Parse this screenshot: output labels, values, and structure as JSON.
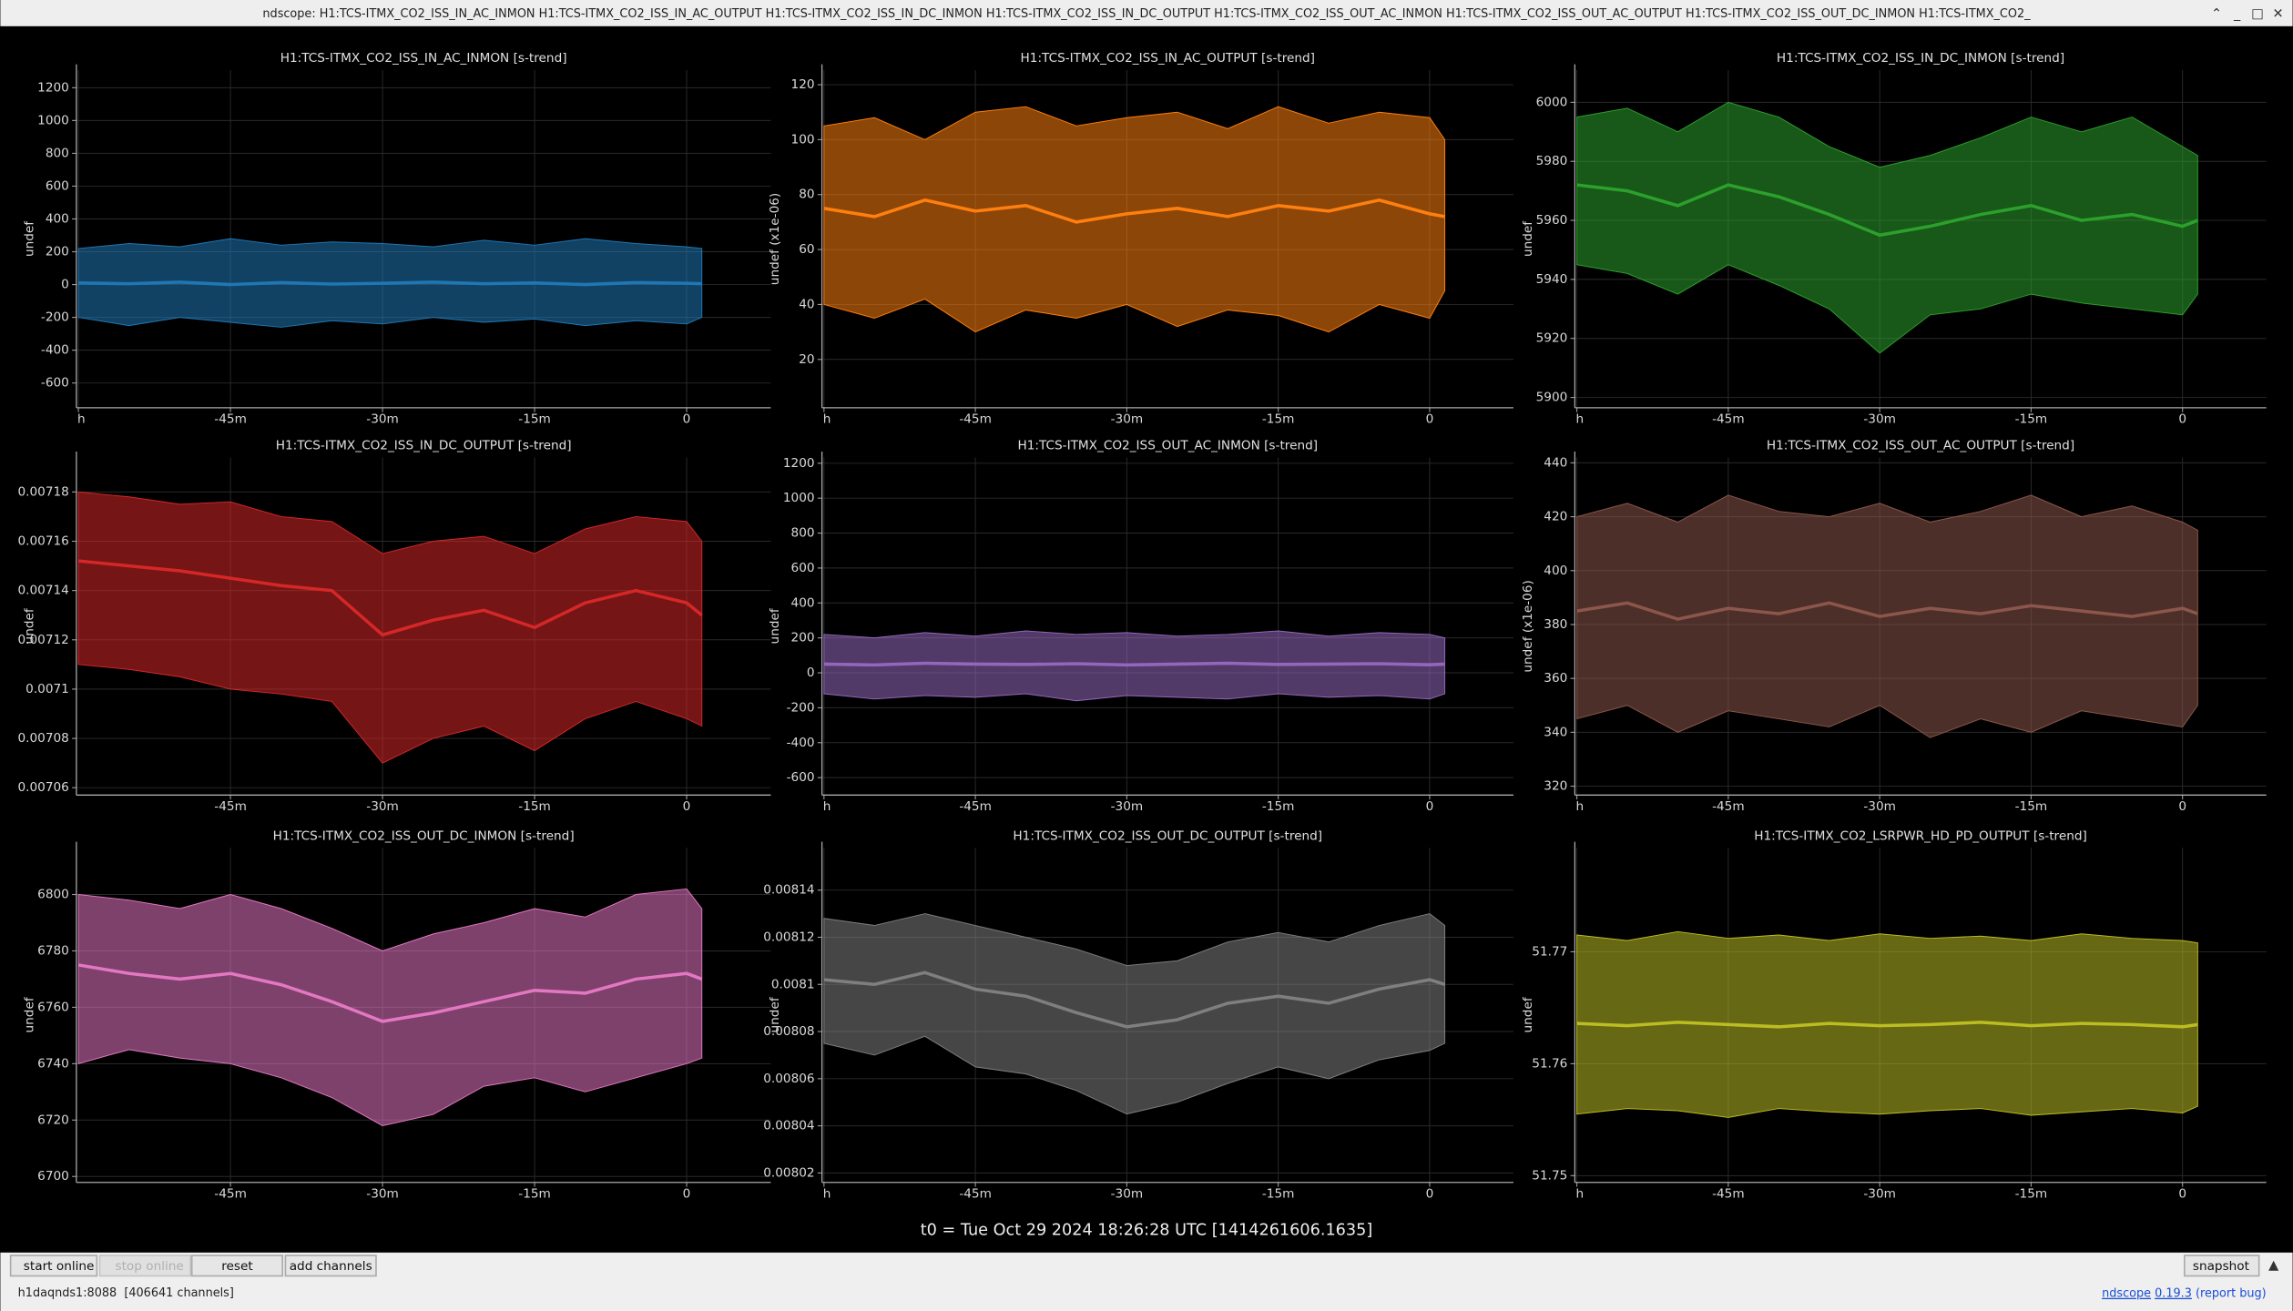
{
  "window_title": "ndscope: H1:TCS-ITMX_CO2_ISS_IN_AC_INMON H1:TCS-ITMX_CO2_ISS_IN_AC_OUTPUT H1:TCS-ITMX_CO2_ISS_IN_DC_INMON H1:TCS-ITMX_CO2_ISS_IN_DC_OUTPUT H1:TCS-ITMX_CO2_ISS_OUT_AC_INMON H1:TCS-ITMX_CO2_ISS_OUT_AC_OUTPUT H1:TCS-ITMX_CO2_ISS_OUT_DC_INMON H1:TCS-ITMX_CO2_",
  "chart_data": [
    {
      "type": "line",
      "title": "H1:TCS-ITMX_CO2_ISS_IN_AC_INMON [s-trend]",
      "ylabel": "undef",
      "color": "#1f77b4",
      "grid": true,
      "xlim": [
        -60.2,
        8.3
      ],
      "xticks": [
        {
          "value": -60,
          "label": "h"
        },
        {
          "value": -45,
          "label": "-45m"
        },
        {
          "value": -30,
          "label": "-30m"
        },
        {
          "value": -15,
          "label": "-15m"
        },
        0
      ],
      "ylim": [
        -751,
        1307
      ],
      "yticks": [
        -600,
        -400,
        -200,
        0,
        200,
        400,
        600,
        800,
        1000,
        1200
      ],
      "x": [
        -60,
        -55,
        -50,
        -45,
        -40,
        -35,
        -30,
        -25,
        -20,
        -15,
        -10,
        -5,
        0,
        1.5
      ],
      "values": [
        10,
        5,
        15,
        0,
        12,
        3,
        8,
        15,
        5,
        10,
        0,
        12,
        8,
        5
      ],
      "low": [
        -200,
        -250,
        -200,
        -230,
        -260,
        -220,
        -240,
        -200,
        -230,
        -210,
        -250,
        -220,
        -240,
        -200
      ],
      "high": [
        220,
        250,
        230,
        280,
        240,
        260,
        250,
        230,
        270,
        240,
        280,
        250,
        230,
        220
      ]
    },
    {
      "type": "line",
      "title": "H1:TCS-ITMX_CO2_ISS_IN_AC_OUTPUT [s-trend]",
      "ylabel": "undef (x1e-06)",
      "color": "#ff7f0e",
      "grid": true,
      "xlim": [
        -60.2,
        8.3
      ],
      "xticks": [
        {
          "value": -60,
          "label": "h"
        },
        {
          "value": -45,
          "label": "-45m"
        },
        {
          "value": -30,
          "label": "-30m"
        },
        {
          "value": -15,
          "label": "-15m"
        },
        0
      ],
      "ylim": [
        2.4,
        125.3
      ],
      "yticks": [
        20,
        40,
        60,
        80,
        100,
        120
      ],
      "x": [
        -60,
        -55,
        -50,
        -45,
        -40,
        -35,
        -30,
        -25,
        -20,
        -15,
        -10,
        -5,
        0,
        1.5
      ],
      "values": [
        75,
        72,
        78,
        74,
        76,
        70,
        73,
        75,
        72,
        76,
        74,
        78,
        73,
        72
      ],
      "low": [
        40,
        35,
        42,
        30,
        38,
        35,
        40,
        32,
        38,
        36,
        30,
        40,
        35,
        45
      ],
      "high": [
        105,
        108,
        100,
        110,
        112,
        105,
        108,
        110,
        104,
        112,
        106,
        110,
        108,
        100
      ]
    },
    {
      "type": "line",
      "title": "H1:TCS-ITMX_CO2_ISS_IN_DC_INMON [s-trend]",
      "ylabel": "undef",
      "color": "#2ca02c",
      "grid": true,
      "xlim": [
        -60.2,
        8.3
      ],
      "xticks": [
        {
          "value": -60,
          "label": "h"
        },
        {
          "value": -45,
          "label": "-45m"
        },
        {
          "value": -30,
          "label": "-30m"
        },
        {
          "value": -15,
          "label": "-15m"
        },
        0
      ],
      "ylim": [
        5896.5,
        6010.9
      ],
      "yticks": [
        5900,
        5920,
        5940,
        5960,
        5980,
        6000
      ],
      "x": [
        -60,
        -55,
        -50,
        -45,
        -40,
        -35,
        -30,
        -25,
        -20,
        -15,
        -10,
        -5,
        0,
        1.5
      ],
      "values": [
        5972,
        5970,
        5965,
        5972,
        5968,
        5962,
        5955,
        5958,
        5962,
        5965,
        5960,
        5962,
        5958,
        5960
      ],
      "low": [
        5945,
        5942,
        5935,
        5945,
        5938,
        5930,
        5915,
        5928,
        5930,
        5935,
        5932,
        5930,
        5928,
        5935
      ],
      "high": [
        5995,
        5998,
        5990,
        6000,
        5995,
        5985,
        5978,
        5982,
        5988,
        5995,
        5990,
        5995,
        5985,
        5982
      ]
    },
    {
      "type": "line",
      "title": "H1:TCS-ITMX_CO2_ISS_IN_DC_OUTPUT [s-trend]",
      "ylabel": "undef",
      "color": "#d62728",
      "grid": true,
      "xlim": [
        -60.2,
        8.3
      ],
      "xticks": [
        {
          "value": -45,
          "label": "-45m"
        },
        {
          "value": -30,
          "label": "-30m"
        },
        {
          "value": -15,
          "label": "-15m"
        },
        0
      ],
      "ylim": [
        0.007057,
        0.007194
      ],
      "yticks": [
        0.00706,
        0.00708,
        0.0071,
        0.00712,
        0.00714,
        0.00716,
        0.00718
      ],
      "x": [
        -60,
        -55,
        -50,
        -45,
        -40,
        -35,
        -30,
        -25,
        -20,
        -15,
        -10,
        -5,
        0,
        1.5
      ],
      "values": [
        0.007152,
        0.00715,
        0.007148,
        0.007145,
        0.007142,
        0.00714,
        0.007122,
        0.007128,
        0.007132,
        0.007125,
        0.007135,
        0.00714,
        0.007135,
        0.00713
      ],
      "low": [
        0.00711,
        0.007108,
        0.007105,
        0.0071,
        0.007098,
        0.007095,
        0.00707,
        0.00708,
        0.007085,
        0.007075,
        0.007088,
        0.007095,
        0.007088,
        0.007085
      ],
      "high": [
        0.00718,
        0.007178,
        0.007175,
        0.007176,
        0.00717,
        0.007168,
        0.007155,
        0.00716,
        0.007162,
        0.007155,
        0.007165,
        0.00717,
        0.007168,
        0.00716
      ]
    },
    {
      "type": "line",
      "title": "H1:TCS-ITMX_CO2_ISS_OUT_AC_INMON [s-trend]",
      "ylabel": "undef",
      "color": "#9467bd",
      "grid": true,
      "xlim": [
        -60.2,
        8.3
      ],
      "xticks": [
        {
          "value": -60,
          "label": "h"
        },
        {
          "value": -45,
          "label": "-45m"
        },
        {
          "value": -30,
          "label": "-30m"
        },
        {
          "value": -15,
          "label": "-15m"
        },
        0
      ],
      "ylim": [
        -700,
        1233
      ],
      "yticks": [
        -600,
        -400,
        -200,
        0,
        200,
        400,
        600,
        800,
        1000,
        1200
      ],
      "x": [
        -60,
        -55,
        -50,
        -45,
        -40,
        -35,
        -30,
        -25,
        -20,
        -15,
        -10,
        -5,
        0,
        1.5
      ],
      "values": [
        50,
        45,
        55,
        50,
        48,
        52,
        45,
        50,
        55,
        48,
        50,
        52,
        46,
        50
      ],
      "low": [
        -120,
        -150,
        -130,
        -140,
        -120,
        -160,
        -130,
        -140,
        -150,
        -120,
        -140,
        -130,
        -150,
        -120
      ],
      "high": [
        220,
        200,
        230,
        210,
        240,
        220,
        230,
        210,
        220,
        240,
        210,
        230,
        220,
        200
      ]
    },
    {
      "type": "line",
      "title": "H1:TCS-ITMX_CO2_ISS_OUT_AC_OUTPUT [s-trend]",
      "ylabel": "undef (x1e-06)",
      "color": "#8c564b",
      "grid": true,
      "xlim": [
        -60.2,
        8.3
      ],
      "xticks": [
        {
          "value": -60,
          "label": "h"
        },
        {
          "value": -45,
          "label": "-45m"
        },
        {
          "value": -30,
          "label": "-30m"
        },
        {
          "value": -15,
          "label": "-15m"
        },
        0
      ],
      "ylim": [
        316.7,
        442
      ],
      "yticks": [
        320,
        340,
        360,
        380,
        400,
        420,
        440
      ],
      "x": [
        -60,
        -55,
        -50,
        -45,
        -40,
        -35,
        -30,
        -25,
        -20,
        -15,
        -10,
        -5,
        0,
        1.5
      ],
      "values": [
        385,
        388,
        382,
        386,
        384,
        388,
        383,
        386,
        384,
        387,
        385,
        383,
        386,
        384
      ],
      "low": [
        345,
        350,
        340,
        348,
        345,
        342,
        350,
        338,
        345,
        340,
        348,
        345,
        342,
        350
      ],
      "high": [
        420,
        425,
        418,
        428,
        422,
        420,
        425,
        418,
        422,
        428,
        420,
        424,
        418,
        415
      ]
    },
    {
      "type": "line",
      "title": "H1:TCS-ITMX_CO2_ISS_OUT_DC_INMON [s-trend]",
      "ylabel": "undef",
      "color": "#e377c2",
      "grid": true,
      "xlim": [
        -60.2,
        8.3
      ],
      "xticks": [
        {
          "value": -45,
          "label": "-45m"
        },
        {
          "value": -30,
          "label": "-30m"
        },
        {
          "value": -15,
          "label": "-15m"
        },
        0
      ],
      "ylim": [
        6697.9,
        6816.6
      ],
      "yticks": [
        6700,
        6720,
        6740,
        6760,
        6780,
        6800
      ],
      "x": [
        -60,
        -55,
        -50,
        -45,
        -40,
        -35,
        -30,
        -25,
        -20,
        -15,
        -10,
        -5,
        0,
        1.5
      ],
      "values": [
        6775,
        6772,
        6770,
        6772,
        6768,
        6762,
        6755,
        6758,
        6762,
        6766,
        6765,
        6770,
        6772,
        6770
      ],
      "low": [
        6740,
        6745,
        6742,
        6740,
        6735,
        6728,
        6718,
        6722,
        6732,
        6735,
        6730,
        6735,
        6740,
        6742
      ],
      "high": [
        6800,
        6798,
        6795,
        6800,
        6795,
        6788,
        6780,
        6786,
        6790,
        6795,
        6792,
        6800,
        6802,
        6795
      ]
    },
    {
      "type": "line",
      "title": "H1:TCS-ITMX_CO2_ISS_OUT_DC_OUTPUT [s-trend]",
      "ylabel": "undef",
      "color": "#7f7f7f",
      "grid": true,
      "xlim": [
        -60.2,
        8.3
      ],
      "xticks": [
        {
          "value": -60,
          "label": "h"
        },
        {
          "value": -45,
          "label": "-45m"
        },
        {
          "value": -30,
          "label": "-30m"
        },
        {
          "value": -15,
          "label": "-15m"
        },
        0
      ],
      "ylim": [
        0.008016,
        0.008158
      ],
      "yticks": [
        0.00802,
        0.00804,
        0.00806,
        0.00808,
        0.0081,
        0.00812,
        0.00814
      ],
      "x": [
        -60,
        -55,
        -50,
        -45,
        -40,
        -35,
        -30,
        -25,
        -20,
        -15,
        -10,
        -5,
        0,
        1.5
      ],
      "values": [
        0.008102,
        0.0081,
        0.008105,
        0.008098,
        0.008095,
        0.008088,
        0.008082,
        0.008085,
        0.008092,
        0.008095,
        0.008092,
        0.008098,
        0.008102,
        0.0081
      ],
      "low": [
        0.008075,
        0.00807,
        0.008078,
        0.008065,
        0.008062,
        0.008055,
        0.008045,
        0.00805,
        0.008058,
        0.008065,
        0.00806,
        0.008068,
        0.008072,
        0.008075
      ],
      "high": [
        0.008128,
        0.008125,
        0.00813,
        0.008125,
        0.00812,
        0.008115,
        0.008108,
        0.00811,
        0.008118,
        0.008122,
        0.008118,
        0.008125,
        0.00813,
        0.008125
      ]
    },
    {
      "type": "line",
      "title": "H1:TCS-ITMX_CO2_LSRPWR_HD_PD_OUTPUT [s-trend]",
      "ylabel": "undef",
      "color": "#bcbd22",
      "grid": true,
      "xlim": [
        -60.2,
        8.3
      ],
      "xticks": [
        {
          "value": -60,
          "label": "h"
        },
        {
          "value": -45,
          "label": "-45m"
        },
        {
          "value": -30,
          "label": "-30m"
        },
        {
          "value": -15,
          "label": "-15m"
        },
        0
      ],
      "ylim": [
        51.7494,
        51.7793
      ],
      "yticks": [
        51.75,
        51.76,
        51.77
      ],
      "x": [
        -60,
        -55,
        -50,
        -45,
        -40,
        -35,
        -30,
        -25,
        -20,
        -15,
        -10,
        -5,
        0,
        1.5
      ],
      "values": [
        51.7636,
        51.7634,
        51.7637,
        51.7635,
        51.7633,
        51.7636,
        51.7634,
        51.7635,
        51.7637,
        51.7634,
        51.7636,
        51.7635,
        51.7633,
        51.7635
      ],
      "low": [
        51.7555,
        51.756,
        51.7558,
        51.7552,
        51.756,
        51.7557,
        51.7555,
        51.7558,
        51.756,
        51.7554,
        51.7557,
        51.756,
        51.7556,
        51.7562
      ],
      "high": [
        51.7715,
        51.771,
        51.7718,
        51.7712,
        51.7715,
        51.771,
        51.7716,
        51.7712,
        51.7714,
        51.771,
        51.7716,
        51.7712,
        51.771,
        51.7708
      ]
    }
  ],
  "t0": "t0 = Tue Oct 29 2024 18:26:28 UTC [1414261606.1635]",
  "toolbar": {
    "start": "start online",
    "stop": "stop online",
    "reset": "reset",
    "add": "add channels",
    "snapshot": "snapshot"
  },
  "status": {
    "server": "h1daqnds1:8088  [406641 channels]",
    "app": "ndscope",
    "version": "0.19.3",
    "report": "(report bug)"
  }
}
